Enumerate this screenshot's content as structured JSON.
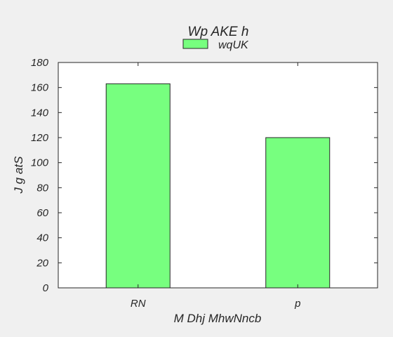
{
  "chart_data": {
    "type": "bar",
    "title": "Wp AKE h",
    "xlabel": "M Dhj MhwNncb",
    "ylabel": "J  g atS",
    "categories": [
      "RN",
      "p"
    ],
    "series": [
      {
        "name": "wqUK",
        "values": [
          163,
          120
        ]
      }
    ],
    "ylim": [
      0,
      180
    ],
    "yticks": [
      0,
      20,
      40,
      60,
      80,
      100,
      120,
      140,
      160,
      180
    ],
    "legend_position": "top-center",
    "grid": false,
    "bar_color": "#77ff7f"
  }
}
